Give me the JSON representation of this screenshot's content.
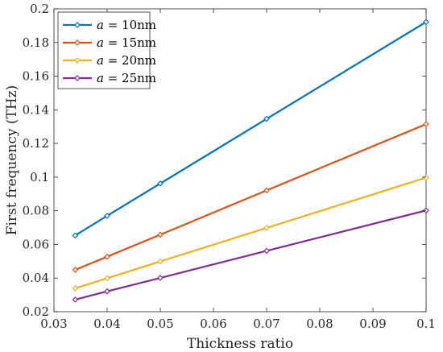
{
  "chart_data": {
    "type": "line",
    "xlabel": "Thickness ratio",
    "ylabel": "First frequency (THz)",
    "xlim": [
      0.03,
      0.1
    ],
    "ylim": [
      0.02,
      0.2
    ],
    "xticks": [
      "0.03",
      "0.04",
      "0.05",
      "0.06",
      "0.07",
      "0.08",
      "0.09",
      "0.1"
    ],
    "yticks": [
      "0.02",
      "0.04",
      "0.06",
      "0.08",
      "0.1",
      "0.12",
      "0.14",
      "0.16",
      "0.18",
      "0.2"
    ],
    "grid": false,
    "legend_position": "top-left",
    "x": [
      0.034,
      0.04,
      0.05,
      0.07,
      0.1
    ],
    "series": [
      {
        "name": "a = 10nm",
        "var": "a",
        "rest": " = 10nm",
        "color": "#0072BD",
        "values": [
          0.0653,
          0.077,
          0.0962,
          0.1346,
          0.1922
        ]
      },
      {
        "name": "a = 15nm",
        "var": "a",
        "rest": " = 15nm",
        "color": "#D95319",
        "values": [
          0.0449,
          0.0527,
          0.0658,
          0.0921,
          0.1315
        ]
      },
      {
        "name": "a = 20nm",
        "var": "a",
        "rest": " = 20nm",
        "color": "#EDB120",
        "values": [
          0.0339,
          0.0399,
          0.0499,
          0.0698,
          0.0997
        ]
      },
      {
        "name": "a = 25nm",
        "var": "a",
        "rest": " = 25nm",
        "color": "#7E2F8E",
        "values": [
          0.0272,
          0.0321,
          0.0401,
          0.0562,
          0.0802
        ]
      }
    ]
  }
}
